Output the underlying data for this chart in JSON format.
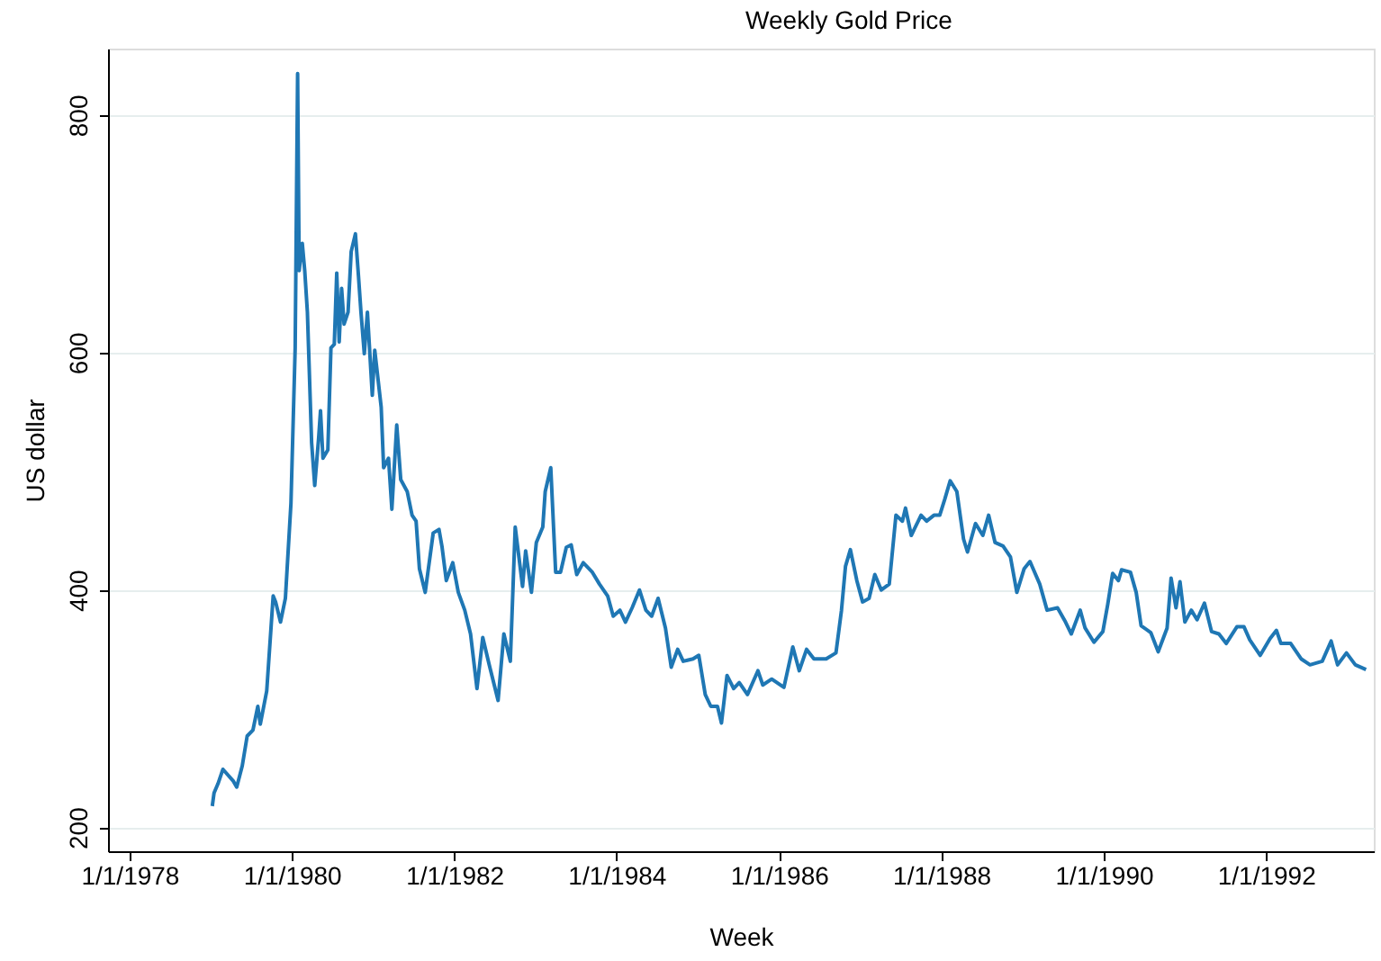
{
  "chart_data": {
    "type": "line",
    "title": "Weekly Gold Price",
    "xlabel": "Week",
    "ylabel": "US dollar",
    "xlim": [
      "1977-09-26",
      "1993-04-30"
    ],
    "xticks": [
      {
        "value": "1978-01-01",
        "label": "1/1/1978"
      },
      {
        "value": "1980-01-01",
        "label": "1/1/1980"
      },
      {
        "value": "1982-01-01",
        "label": "1/1/1982"
      },
      {
        "value": "1984-01-01",
        "label": "1/1/1984"
      },
      {
        "value": "1986-01-01",
        "label": "1/1/1986"
      },
      {
        "value": "1988-01-01",
        "label": "1/1/1988"
      },
      {
        "value": "1990-01-01",
        "label": "1/1/1990"
      },
      {
        "value": "1992-01-01",
        "label": "1/1/1992"
      }
    ],
    "ylim": [
      180,
      856
    ],
    "yticks": [
      200,
      400,
      600,
      800
    ],
    "grid": "y",
    "legend": false,
    "marker": "none",
    "line_style": "solid",
    "x": [
      "1979-01-08",
      "1979-01-16",
      "1979-02-03",
      "1979-02-25",
      "1979-04-13",
      "1979-04-28",
      "1979-05-23",
      "1979-06-14",
      "1979-07-10",
      "1979-08-01",
      "1979-08-12",
      "1979-09-10",
      "1979-10-09",
      "1979-10-20",
      "1979-11-11",
      "1979-12-03",
      "1979-12-28",
      "1980-01-16",
      "1980-01-27",
      "1980-02-03",
      "1980-02-17",
      "1980-02-28",
      "1980-03-11",
      "1980-03-30",
      "1980-04-13",
      "1980-05-01",
      "1980-05-09",
      "1980-05-20",
      "1980-06-11",
      "1980-06-25",
      "1980-07-10",
      "1980-07-21",
      "1980-08-01",
      "1980-08-12",
      "1980-08-23",
      "1980-09-10",
      "1980-09-24",
      "1980-10-13",
      "1980-10-27",
      "1980-11-07",
      "1980-11-22",
      "1980-12-06",
      "1980-12-28",
      "1981-01-08",
      "1981-02-06",
      "1981-02-17",
      "1981-03-11",
      "1981-03-26",
      "1981-04-17",
      "1981-05-05",
      "1981-06-03",
      "1981-06-25",
      "1981-07-13",
      "1981-07-28",
      "1981-08-23",
      "1981-09-28",
      "1981-10-24",
      "1981-11-07",
      "1981-11-26",
      "1981-12-25",
      "1982-01-19",
      "1982-02-17",
      "1982-03-15",
      "1982-04-13",
      "1982-05-09",
      "1982-06-07",
      "1982-07-17",
      "1982-08-12",
      "1982-09-10",
      "1982-10-02",
      "1982-11-04",
      "1982-11-18",
      "1982-12-14",
      "1983-01-05",
      "1983-02-03",
      "1983-02-14",
      "1983-03-11",
      "1983-04-02",
      "1983-04-24",
      "1983-05-20",
      "1983-06-11",
      "1983-07-06",
      "1983-08-04",
      "1983-09-14",
      "1983-10-16",
      "1983-11-22",
      "1983-12-17",
      "1984-01-16",
      "1984-02-10",
      "1984-03-11",
      "1984-04-13",
      "1984-05-12",
      "1984-06-07",
      "1984-07-06",
      "1984-08-08",
      "1984-09-03",
      "1984-10-02",
      "1984-10-27",
      "1984-12-10",
      "1985-01-05",
      "1985-02-03",
      "1985-02-28",
      "1985-03-30",
      "1985-04-17",
      "1985-05-12",
      "1985-06-11",
      "1985-07-06",
      "1985-08-12",
      "1985-09-28",
      "1985-10-20",
      "1985-11-29",
      "1986-01-23",
      "1986-03-04",
      "1986-04-02",
      "1986-05-05",
      "1986-06-07",
      "1986-08-01",
      "1986-09-14",
      "1986-10-09",
      "1986-10-27",
      "1986-11-18",
      "1986-12-17",
      "1987-01-12",
      "1987-02-10",
      "1987-03-08",
      "1987-04-06",
      "1987-05-12",
      "1987-06-11",
      "1987-07-10",
      "1987-07-24",
      "1987-08-19",
      "1987-10-02",
      "1987-10-27",
      "1987-11-29",
      "1987-12-25",
      "1988-01-16",
      "1988-02-10",
      "1988-03-11",
      "1988-04-10",
      "1988-04-28",
      "1988-06-03",
      "1988-07-06",
      "1988-08-01",
      "1988-08-30",
      "1988-10-05",
      "1988-11-07",
      "1988-12-06",
      "1989-01-08",
      "1989-02-03",
      "1989-03-19",
      "1989-04-21",
      "1989-06-07",
      "1989-07-13",
      "1989-08-08",
      "1989-09-17",
      "1989-10-09",
      "1989-11-18",
      "1989-12-28",
      "1990-01-19",
      "1990-02-10",
      "1990-03-08",
      "1990-03-22",
      "1990-05-01",
      "1990-05-27",
      "1990-06-18",
      "1990-08-01",
      "1990-09-03",
      "1990-10-13",
      "1990-10-31",
      "1990-11-22",
      "1990-12-10",
      "1991-01-01",
      "1991-01-30",
      "1991-02-25",
      "1991-03-30",
      "1991-05-01",
      "1991-06-03",
      "1991-07-06",
      "1991-08-23",
      "1991-09-24",
      "1991-10-20",
      "1991-12-06",
      "1992-01-19",
      "1992-02-17",
      "1992-03-08",
      "1992-04-21",
      "1992-06-07",
      "1992-07-17",
      "1992-09-10",
      "1992-10-20",
      "1992-11-18",
      "1992-12-28",
      "1993-02-06",
      "1993-03-26"
    ],
    "series": [
      {
        "color": "#1f77b4",
        "values": [
          218,
          229,
          237,
          249,
          239,
          234,
          252,
          277,
          282,
          302,
          287,
          315,
          395,
          390,
          373,
          393,
          473,
          604,
          835,
          669,
          692,
          669,
          634,
          524,
          488,
          529,
          551,
          511,
          518,
          604,
          607,
          667,
          609,
          654,
          624,
          634,
          685,
          700,
          664,
          634,
          599,
          634,
          564,
          602,
          554,
          503,
          511,
          468,
          539,
          493,
          483,
          463,
          458,
          418,
          398,
          448,
          451,
          436,
          408,
          423,
          398,
          383,
          363,
          317,
          360,
          337,
          307,
          363,
          340,
          453,
          403,
          433,
          398,
          440,
          453,
          483,
          503,
          415,
          415,
          436,
          438,
          413,
          423,
          415,
          405,
          395,
          378,
          383,
          373,
          385,
          400,
          383,
          378,
          393,
          368,
          335,
          350,
          340,
          342,
          345,
          312,
          302,
          302,
          288,
          328,
          317,
          322,
          312,
          332,
          320,
          325,
          318,
          352,
          332,
          350,
          342,
          342,
          347,
          383,
          420,
          434,
          408,
          390,
          393,
          413,
          400,
          405,
          463,
          458,
          469,
          446,
          463,
          458,
          463,
          463,
          476,
          492,
          483,
          443,
          432,
          456,
          446,
          463,
          440,
          437,
          428,
          398,
          418,
          424,
          405,
          383,
          385,
          373,
          363,
          383,
          368,
          356,
          365,
          388,
          414,
          408,
          417,
          415,
          398,
          370,
          364,
          348,
          368,
          410,
          385,
          407,
          373,
          383,
          375,
          389,
          365,
          363,
          355,
          369,
          369,
          358,
          345,
          359,
          366,
          355,
          355,
          342,
          337,
          340,
          357,
          337,
          347,
          337,
          333
        ]
      }
    ]
  }
}
